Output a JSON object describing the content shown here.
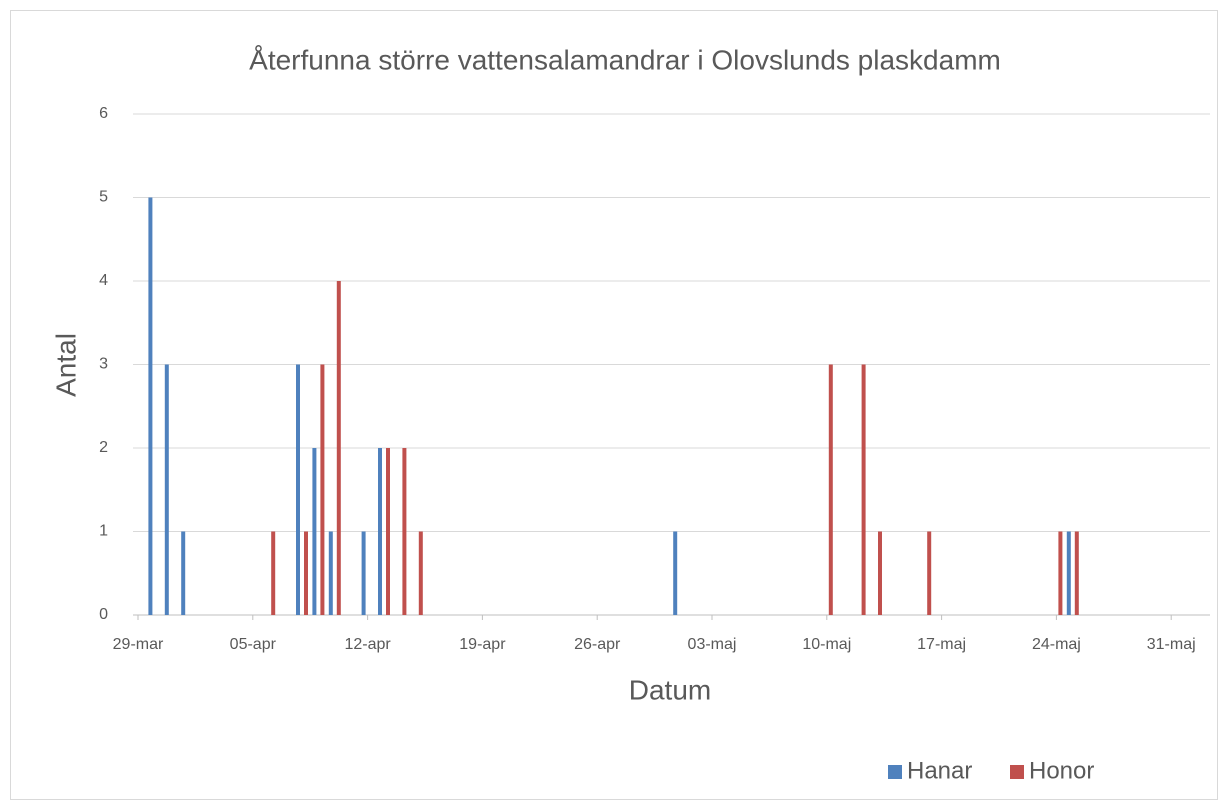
{
  "chart_data": {
    "type": "bar",
    "title": "Återfunna större vattensalamandrar i Olovslunds plaskdamm",
    "x_label": "Datum",
    "y_label": "Antal",
    "x": [
      "30-mar",
      "31-mar",
      "01-apr",
      "06-apr",
      "08-apr",
      "09-apr",
      "10-apr",
      "12-apr",
      "13-apr",
      "14-apr",
      "15-apr",
      "01-maj",
      "10-maj",
      "12-maj",
      "13-maj",
      "16-maj",
      "24-maj",
      "25-maj"
    ],
    "series": [
      {
        "name": "Hanar",
        "color": "#4f81bd",
        "values": [
          5,
          3,
          1,
          null,
          3,
          2,
          1,
          1,
          2,
          null,
          null,
          1,
          null,
          null,
          null,
          null,
          null,
          1
        ]
      },
      {
        "name": "Honor",
        "color": "#c0504d",
        "values": [
          null,
          null,
          null,
          1,
          1,
          3,
          4,
          null,
          2,
          2,
          1,
          null,
          3,
          3,
          1,
          1,
          1,
          1
        ]
      }
    ],
    "xlim": [
      "29-mar",
      "02-jun"
    ],
    "xticks": [
      "29-mar",
      "05-apr",
      "12-apr",
      "19-apr",
      "26-apr",
      "03-maj",
      "10-maj",
      "17-maj",
      "24-maj",
      "31-maj"
    ],
    "ylim": [
      0,
      6
    ],
    "yticks": [
      0,
      1,
      2,
      3,
      4,
      5,
      6
    ],
    "grid": true,
    "legend": "bottom-right"
  }
}
